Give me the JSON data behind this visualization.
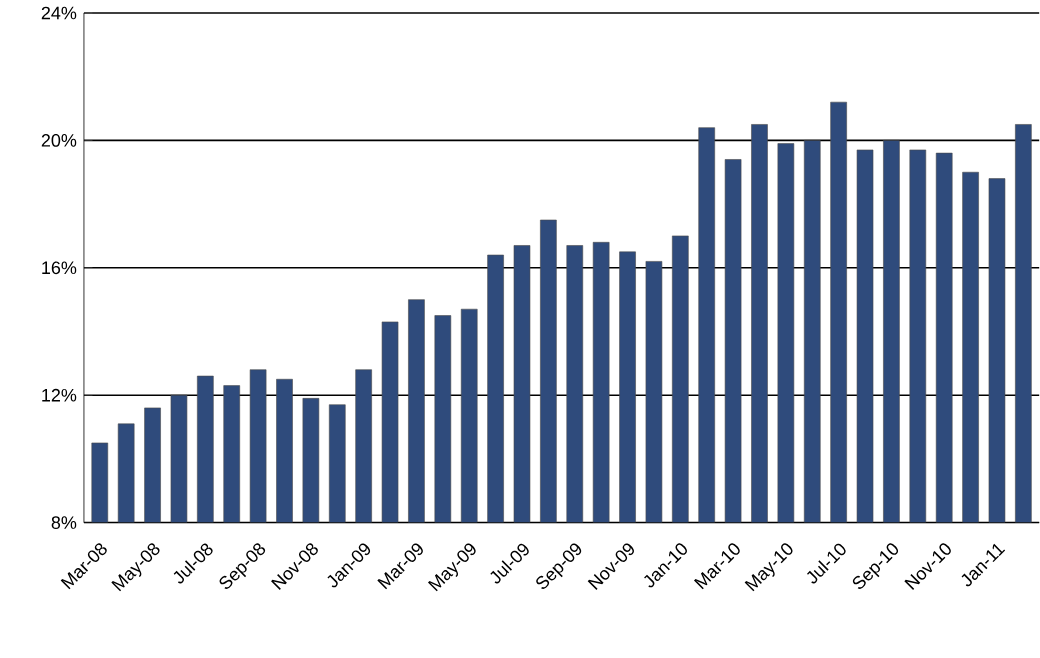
{
  "chart_data": {
    "type": "bar",
    "color": "#2f4b7c",
    "categories": [
      "Mar-08",
      null,
      "May-08",
      null,
      "Jul-08",
      null,
      "Sep-08",
      null,
      "Nov-08",
      null,
      "Jan-09",
      null,
      "Mar-09",
      null,
      "May-09",
      null,
      "Jul-09",
      null,
      "Sep-09",
      null,
      "Nov-09",
      null,
      "Jan-10",
      null,
      "Mar-10",
      null,
      "May-10",
      null,
      "Jul-10",
      null,
      "Sep-10",
      null,
      "Nov-10",
      null,
      "Jan-11",
      null
    ],
    "values": [
      10.5,
      11.1,
      11.6,
      12.0,
      12.6,
      12.3,
      12.8,
      12.5,
      11.9,
      11.7,
      12.8,
      14.3,
      15.0,
      14.5,
      14.7,
      16.4,
      16.7,
      17.5,
      16.7,
      16.8,
      16.5,
      16.2,
      17.0,
      20.4,
      19.4,
      20.5,
      19.9,
      20.0,
      21.2,
      19.7,
      20.0,
      19.7,
      19.6,
      19.0,
      18.8,
      20.5
    ],
    "ylim": [
      8,
      24
    ],
    "yticks": [
      {
        "value": 8,
        "label": "8%"
      },
      {
        "value": 12,
        "label": "12%"
      },
      {
        "value": 16,
        "label": "16%"
      },
      {
        "value": 20,
        "label": "20%"
      },
      {
        "value": 24,
        "label": "24%"
      }
    ],
    "grid": "y"
  }
}
